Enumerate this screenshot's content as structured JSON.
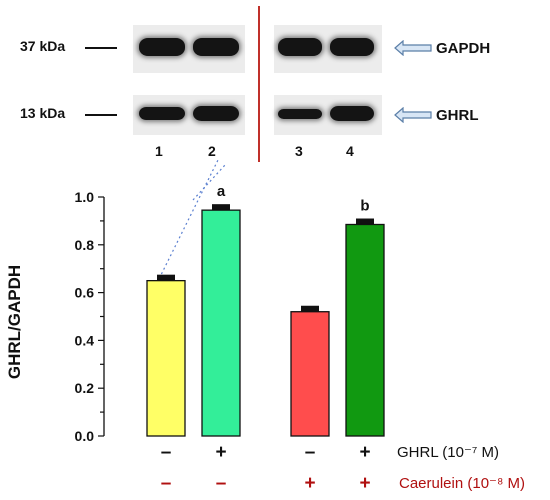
{
  "western_blot": {
    "rows": [
      {
        "marker": "37 kDa",
        "protein": "GAPDH"
      },
      {
        "marker": "13 kDa",
        "protein": "GHRL"
      }
    ],
    "lanes": [
      "1",
      "2",
      "3",
      "4"
    ]
  },
  "chart_data": {
    "type": "bar",
    "ylabel": "GHRL/GAPDH",
    "ylim": [
      0,
      1.0
    ],
    "yticks": [
      "0.0",
      "0.2",
      "0.4",
      "0.6",
      "0.8",
      "1.0"
    ],
    "values": [
      0.65,
      0.945,
      0.52,
      0.885
    ],
    "errors": [
      0.025,
      0.025,
      0.025,
      0.025
    ],
    "colors": [
      "#ffff66",
      "#33ee99",
      "#ff4d4d",
      "#119911"
    ],
    "annotations": [
      "",
      "a",
      "",
      "b"
    ],
    "conditions": [
      {
        "label": "GHRL (10⁻⁷ M)",
        "signs": [
          "–",
          "+",
          "–",
          "+"
        ],
        "color": "#111111"
      },
      {
        "label": "Caerulein (10⁻⁸ M)",
        "signs": [
          "–",
          "–",
          "+",
          "+"
        ],
        "color": "#b01010"
      }
    ]
  }
}
